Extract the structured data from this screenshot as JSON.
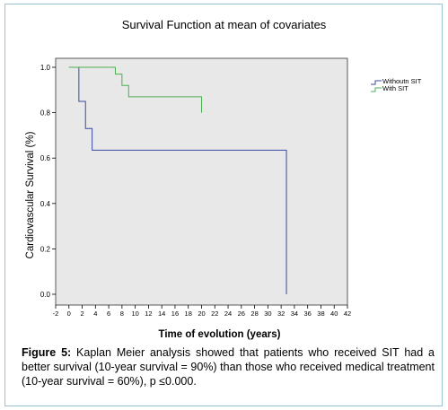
{
  "chart_data": {
    "type": "line",
    "title": "Survival Function at mean of covariates",
    "xlabel": "Time of evolution (years)",
    "ylabel": "Cardiovascular Survival (%)",
    "xlim": [
      -2,
      42
    ],
    "ylim": [
      0,
      1.0
    ],
    "x_ticks": [
      -2,
      0,
      2,
      4,
      6,
      8,
      10,
      12,
      14,
      16,
      18,
      20,
      22,
      24,
      26,
      28,
      30,
      32,
      34,
      36,
      38,
      40,
      42
    ],
    "y_ticks": [
      0.0,
      0.2,
      0.4,
      0.6,
      0.8,
      1.0
    ],
    "y_tick_labels": [
      "0.0",
      "0.2",
      "0.4",
      "0.6",
      "0.8",
      "1.0"
    ],
    "legend_position": "top-right",
    "step": true,
    "series": [
      {
        "name": "Withoutn SIT",
        "color": "#3b4a9e",
        "x": [
          1,
          1.5,
          2.5,
          3.5,
          32.8
        ],
        "y": [
          1.0,
          0.85,
          0.73,
          0.635,
          0.0
        ]
      },
      {
        "name": "With  SIT",
        "color": "#4caf50",
        "x": [
          0,
          7,
          8,
          9,
          20
        ],
        "y": [
          1.0,
          0.97,
          0.92,
          0.87,
          0.8
        ]
      }
    ]
  },
  "caption": {
    "label": "Figure 5:",
    "text": " Kaplan Meier analysis showed that patients who received SIT had a better survival (10-year survival = 90%) than those who received medical treatment (10-year survival = 60%), p ≤0.000."
  }
}
